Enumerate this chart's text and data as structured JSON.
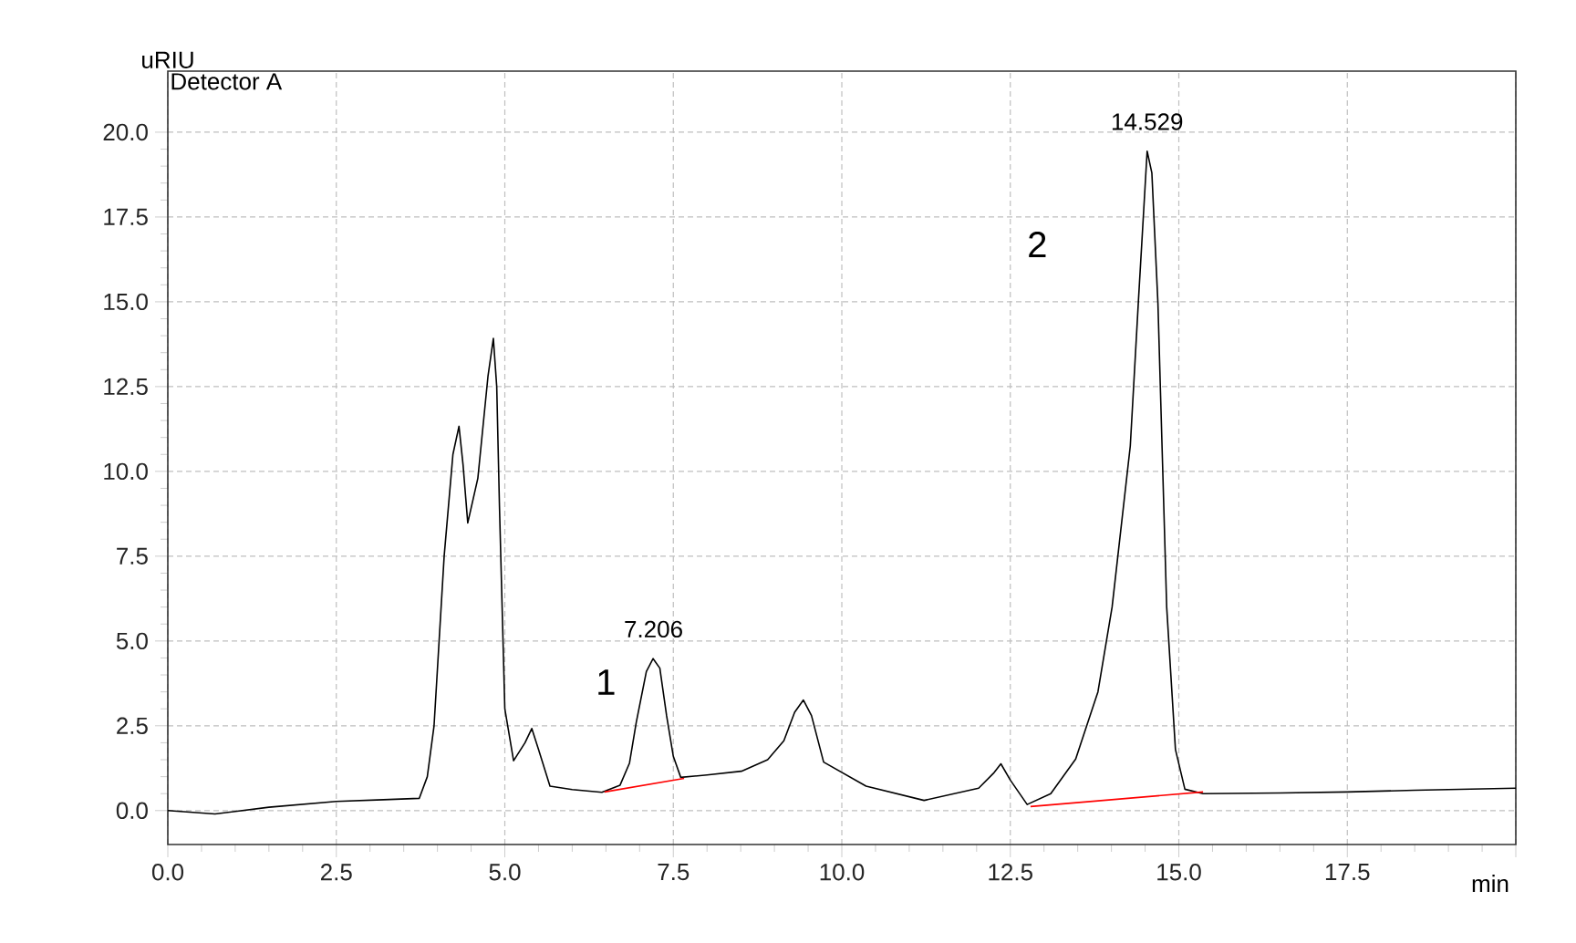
{
  "chart_data": {
    "type": "line",
    "xlabel": "min",
    "ylabel": "uRIU",
    "xlim": [
      0,
      20
    ],
    "ylim": [
      -1.0,
      21.8
    ],
    "xticks": [
      {
        "value": 0,
        "label": "0.0"
      },
      {
        "value": 2.5,
        "label": "2.5"
      },
      {
        "value": 5,
        "label": "5.0"
      },
      {
        "value": 7.5,
        "label": "7.5"
      },
      {
        "value": 10,
        "label": "10.0"
      },
      {
        "value": 12.5,
        "label": "12.5"
      },
      {
        "value": 15,
        "label": "15.0"
      },
      {
        "value": 17.5,
        "label": "17.5"
      },
      {
        "value": 20,
        "label": null
      }
    ],
    "yticks": [
      {
        "value": 0,
        "label": "0.0"
      },
      {
        "value": 2.5,
        "label": "2.5"
      },
      {
        "value": 5,
        "label": "5.0"
      },
      {
        "value": 7.5,
        "label": "7.5"
      },
      {
        "value": 10,
        "label": "10.0"
      },
      {
        "value": 12.5,
        "label": "12.5"
      },
      {
        "value": 15,
        "label": "15.0"
      },
      {
        "value": 17.5,
        "label": "17.5"
      },
      {
        "value": 20,
        "label": "20.0"
      }
    ],
    "grid": true,
    "marker": "none",
    "line_style": "solid",
    "series": [
      {
        "color": "#000000",
        "x": [
          0,
          0.7,
          1.5,
          2.5,
          3.2,
          3.73,
          3.85,
          3.95,
          4.1,
          4.23,
          4.32,
          4.38,
          4.45,
          4.6,
          4.75,
          4.83,
          4.88,
          4.92,
          5.0,
          5.13,
          5.3,
          5.4,
          5.5,
          5.67,
          6.0,
          6.44,
          6.71,
          6.85,
          6.95,
          7.1,
          7.2,
          7.3,
          7.4,
          7.5,
          7.61,
          8.0,
          8.51,
          8.9,
          9.14,
          9.3,
          9.43,
          9.55,
          9.73,
          10.36,
          11.22,
          12.03,
          12.25,
          12.36,
          12.5,
          12.75,
          13.1,
          13.47,
          13.8,
          14.01,
          14.28,
          14.4,
          14.53,
          14.6,
          14.69,
          14.82,
          14.95,
          15.09,
          15.36,
          16.5,
          17.5,
          18.5,
          20
        ],
        "values": [
          0.0,
          -0.1,
          0.1,
          0.27,
          0.32,
          0.36,
          1.0,
          2.5,
          7.5,
          10.5,
          11.33,
          10.2,
          8.48,
          9.8,
          12.8,
          13.92,
          12.5,
          9.0,
          3.0,
          1.47,
          2.0,
          2.42,
          1.8,
          0.72,
          0.62,
          0.54,
          0.75,
          1.4,
          2.6,
          4.1,
          4.48,
          4.2,
          2.8,
          1.6,
          0.98,
          1.05,
          1.16,
          1.5,
          2.06,
          2.9,
          3.26,
          2.8,
          1.43,
          0.72,
          0.3,
          0.66,
          1.1,
          1.38,
          0.9,
          0.18,
          0.5,
          1.52,
          3.5,
          6.0,
          10.75,
          15.0,
          19.44,
          18.8,
          14.96,
          6.0,
          1.8,
          0.63,
          0.5,
          0.52,
          0.55,
          0.6,
          0.66
        ]
      },
      {
        "color": "#ff0000",
        "x": [
          6.48,
          7.66
        ],
        "values": [
          0.55,
          0.95
        ]
      },
      {
        "color": "#ff0000",
        "x": [
          12.8,
          15.36
        ],
        "values": [
          0.12,
          0.55
        ]
      }
    ],
    "annotations": [
      "Detector A",
      {
        "text": "7.206",
        "x": 7.206,
        "y": 4.48
      },
      {
        "text": "14.529",
        "x": 14.529,
        "y": 19.44
      },
      "1",
      "2"
    ]
  }
}
